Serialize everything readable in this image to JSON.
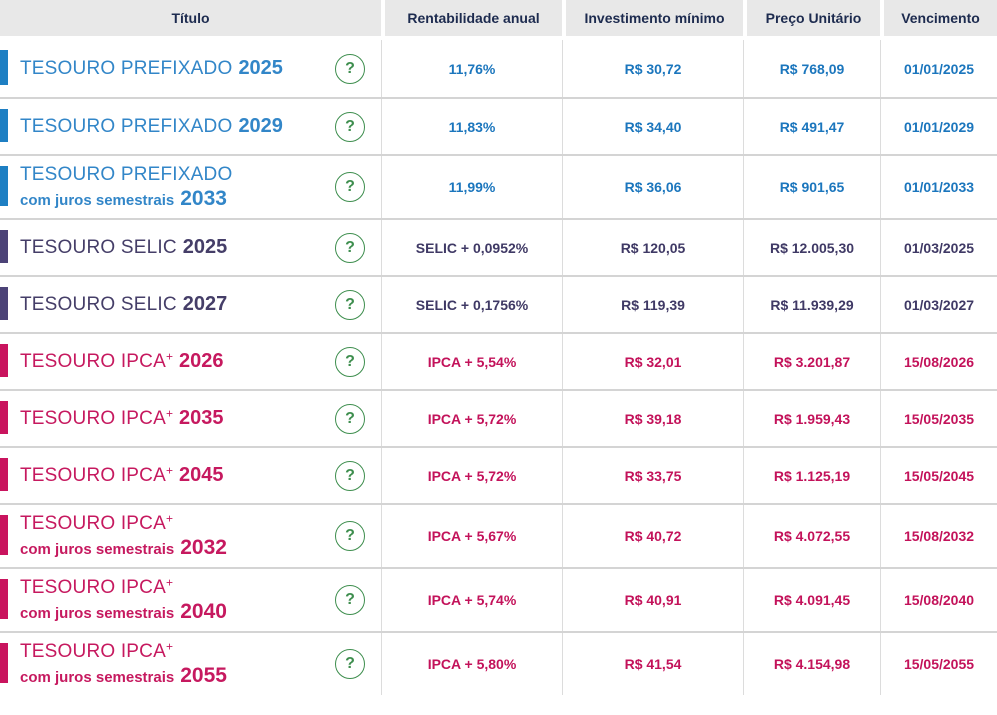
{
  "table": {
    "columns": [
      {
        "label": "Título"
      },
      {
        "label": "Rentabilidade anual"
      },
      {
        "label": "Investimento mínimo"
      },
      {
        "label": "Preço Unitário"
      },
      {
        "label": "Vencimento"
      }
    ],
    "help_icon": "?",
    "rows": [
      {
        "theme": "blue",
        "title": "TESOURO PREFIXADO",
        "title_sup": "",
        "year": "2025",
        "subtitle": "",
        "subtitle_year": "",
        "rate": "11,76%",
        "min_investment": "R$ 30,72",
        "unit_price": "R$ 768,09",
        "maturity": "01/01/2025"
      },
      {
        "theme": "blue",
        "title": "TESOURO PREFIXADO",
        "title_sup": "",
        "year": "2029",
        "subtitle": "",
        "subtitle_year": "",
        "rate": "11,83%",
        "min_investment": "R$ 34,40",
        "unit_price": "R$ 491,47",
        "maturity": "01/01/2029"
      },
      {
        "theme": "blue",
        "title": "TESOURO PREFIXADO",
        "title_sup": "",
        "year": "",
        "subtitle": "com juros semestrais",
        "subtitle_year": "2033",
        "rate": "11,99%",
        "min_investment": "R$ 36,06",
        "unit_price": "R$ 901,65",
        "maturity": "01/01/2033"
      },
      {
        "theme": "purple",
        "title": "TESOURO SELIC",
        "title_sup": "",
        "year": "2025",
        "subtitle": "",
        "subtitle_year": "",
        "rate": "SELIC + 0,0952%",
        "min_investment": "R$ 120,05",
        "unit_price": "R$ 12.005,30",
        "maturity": "01/03/2025"
      },
      {
        "theme": "purple",
        "title": "TESOURO SELIC",
        "title_sup": "",
        "year": "2027",
        "subtitle": "",
        "subtitle_year": "",
        "rate": "SELIC + 0,1756%",
        "min_investment": "R$ 119,39",
        "unit_price": "R$ 11.939,29",
        "maturity": "01/03/2027"
      },
      {
        "theme": "pink",
        "title": "TESOURO IPCA",
        "title_sup": "+",
        "year": "2026",
        "subtitle": "",
        "subtitle_year": "",
        "rate": "IPCA + 5,54%",
        "min_investment": "R$ 32,01",
        "unit_price": "R$ 3.201,87",
        "maturity": "15/08/2026"
      },
      {
        "theme": "pink",
        "title": "TESOURO IPCA",
        "title_sup": "+",
        "year": "2035",
        "subtitle": "",
        "subtitle_year": "",
        "rate": "IPCA + 5,72%",
        "min_investment": "R$ 39,18",
        "unit_price": "R$ 1.959,43",
        "maturity": "15/05/2035"
      },
      {
        "theme": "pink",
        "title": "TESOURO IPCA",
        "title_sup": "+",
        "year": "2045",
        "subtitle": "",
        "subtitle_year": "",
        "rate": "IPCA + 5,72%",
        "min_investment": "R$ 33,75",
        "unit_price": "R$ 1.125,19",
        "maturity": "15/05/2045"
      },
      {
        "theme": "pink",
        "title": "TESOURO IPCA",
        "title_sup": "+",
        "year": "",
        "subtitle": "com juros semestrais",
        "subtitle_year": "2032",
        "rate": "IPCA + 5,67%",
        "min_investment": "R$ 40,72",
        "unit_price": "R$ 4.072,55",
        "maturity": "15/08/2032"
      },
      {
        "theme": "pink",
        "title": "TESOURO IPCA",
        "title_sup": "+",
        "year": "",
        "subtitle": "com juros semestrais",
        "subtitle_year": "2040",
        "rate": "IPCA + 5,74%",
        "min_investment": "R$ 40,91",
        "unit_price": "R$ 4.091,45",
        "maturity": "15/08/2040"
      },
      {
        "theme": "pink",
        "title": "TESOURO IPCA",
        "title_sup": "+",
        "year": "",
        "subtitle": "com juros semestrais",
        "subtitle_year": "2055",
        "rate": "IPCA + 5,80%",
        "min_investment": "R$ 41,54",
        "unit_price": "R$ 4.154,98",
        "maturity": "15/05/2055"
      }
    ]
  },
  "colors": {
    "header_bg": "#e8e8e8",
    "header_text": "#1d2b4f",
    "help_green": "#3e8e4e",
    "divider": "#d4d4d4",
    "blue": {
      "bar": "#1e7fc3",
      "text": "#3286c8",
      "value": "#1b76bd"
    },
    "purple": {
      "bar": "#4c4377",
      "text": "#453e68",
      "value": "#3f3965"
    },
    "pink": {
      "bar": "#c9145e",
      "text": "#c6195f",
      "value": "#c3125a"
    }
  }
}
